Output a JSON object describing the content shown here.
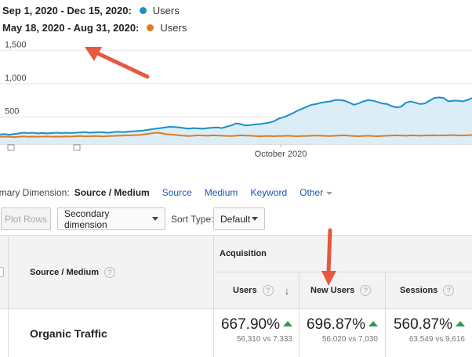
{
  "legend": {
    "current": {
      "range": "Sep 1, 2020 - Dec 15, 2020:",
      "series": "Users",
      "color": "#1d8fc8"
    },
    "previous": {
      "range": "May 18, 2020 - Aug 31, 2020:",
      "series": "Users",
      "color": "#e07a1f"
    }
  },
  "chart_data": {
    "type": "line",
    "y_ticks": [
      "1,500",
      "1,000",
      "500"
    ],
    "ylim": [
      0,
      1550
    ],
    "x_label": "October 2020",
    "grid": true,
    "series": [
      {
        "name": "Users",
        "color": "#1d8fc8",
        "fill": "#dbeef8",
        "values": [
          145,
          150,
          140,
          150,
          160,
          170,
          165,
          170,
          160,
          165,
          160,
          165,
          170,
          165,
          170,
          165,
          170,
          175,
          180,
          170,
          175,
          180,
          175,
          170,
          180,
          185,
          180,
          185,
          190,
          195,
          200,
          210,
          220,
          230,
          240,
          250,
          260,
          255,
          250,
          240,
          230,
          240,
          235,
          230,
          240,
          245,
          250,
          240,
          260,
          280,
          310,
          300,
          280,
          285,
          295,
          300,
          310,
          320,
          340,
          380,
          400,
          430,
          460,
          500,
          530,
          560,
          590,
          600,
          620,
          630,
          640,
          660,
          660,
          650,
          620,
          590,
          610,
          640,
          660,
          650,
          630,
          610,
          600,
          570,
          550,
          560,
          620,
          640,
          620,
          600,
          610,
          650,
          690,
          700,
          690,
          640,
          650,
          650,
          640,
          660,
          690
        ]
      },
      {
        "name": "Users",
        "color": "#e07a1f",
        "values": [
          110,
          112,
          108,
          105,
          110,
          115,
          108,
          112,
          110,
          112,
          115,
          110,
          112,
          110,
          115,
          112,
          118,
          120,
          115,
          118,
          120,
          118,
          115,
          120,
          122,
          125,
          128,
          130,
          132,
          135,
          140,
          150,
          160,
          170,
          165,
          150,
          145,
          140,
          130,
          125,
          120,
          125,
          130,
          128,
          125,
          130,
          128,
          125,
          122,
          120,
          125,
          130,
          128,
          125,
          120,
          118,
          120,
          122,
          118,
          120,
          122,
          125,
          120,
          118,
          120,
          122,
          125,
          128,
          125,
          122,
          120,
          125,
          128,
          130,
          125,
          120,
          118,
          122,
          125,
          120,
          118,
          122,
          125,
          128,
          130,
          128,
          125,
          130,
          128,
          125,
          128,
          130,
          132,
          128,
          130,
          132,
          135,
          130,
          128,
          132,
          135
        ]
      }
    ]
  },
  "dimension_bar": {
    "label": "rimary Dimension:",
    "active": "Source / Medium",
    "links": [
      "Source",
      "Medium",
      "Keyword"
    ],
    "other": "Other"
  },
  "toolbar": {
    "plot_rows": "Plot Rows",
    "secondary_dimension": "Secondary dimension",
    "sort_type_label": "Sort Type:",
    "sort_default": "Default"
  },
  "table": {
    "col_source": "Source / Medium",
    "group_acquisition": "Acquisition",
    "cols": [
      "Users",
      "New Users",
      "Sessions"
    ],
    "row": {
      "label": "Organic Traffic",
      "metrics": [
        {
          "pct": "667.90%",
          "cmp": "56,310 vs 7,333"
        },
        {
          "pct": "696.87%",
          "cmp": "56,020 vs 7,030"
        },
        {
          "pct": "560.87%",
          "cmp": "63,549 vs 9,616"
        }
      ]
    }
  },
  "colors": {
    "annotation_arrow": "#e8573f",
    "link": "#1a56b7",
    "up": "#2e9c4a"
  }
}
